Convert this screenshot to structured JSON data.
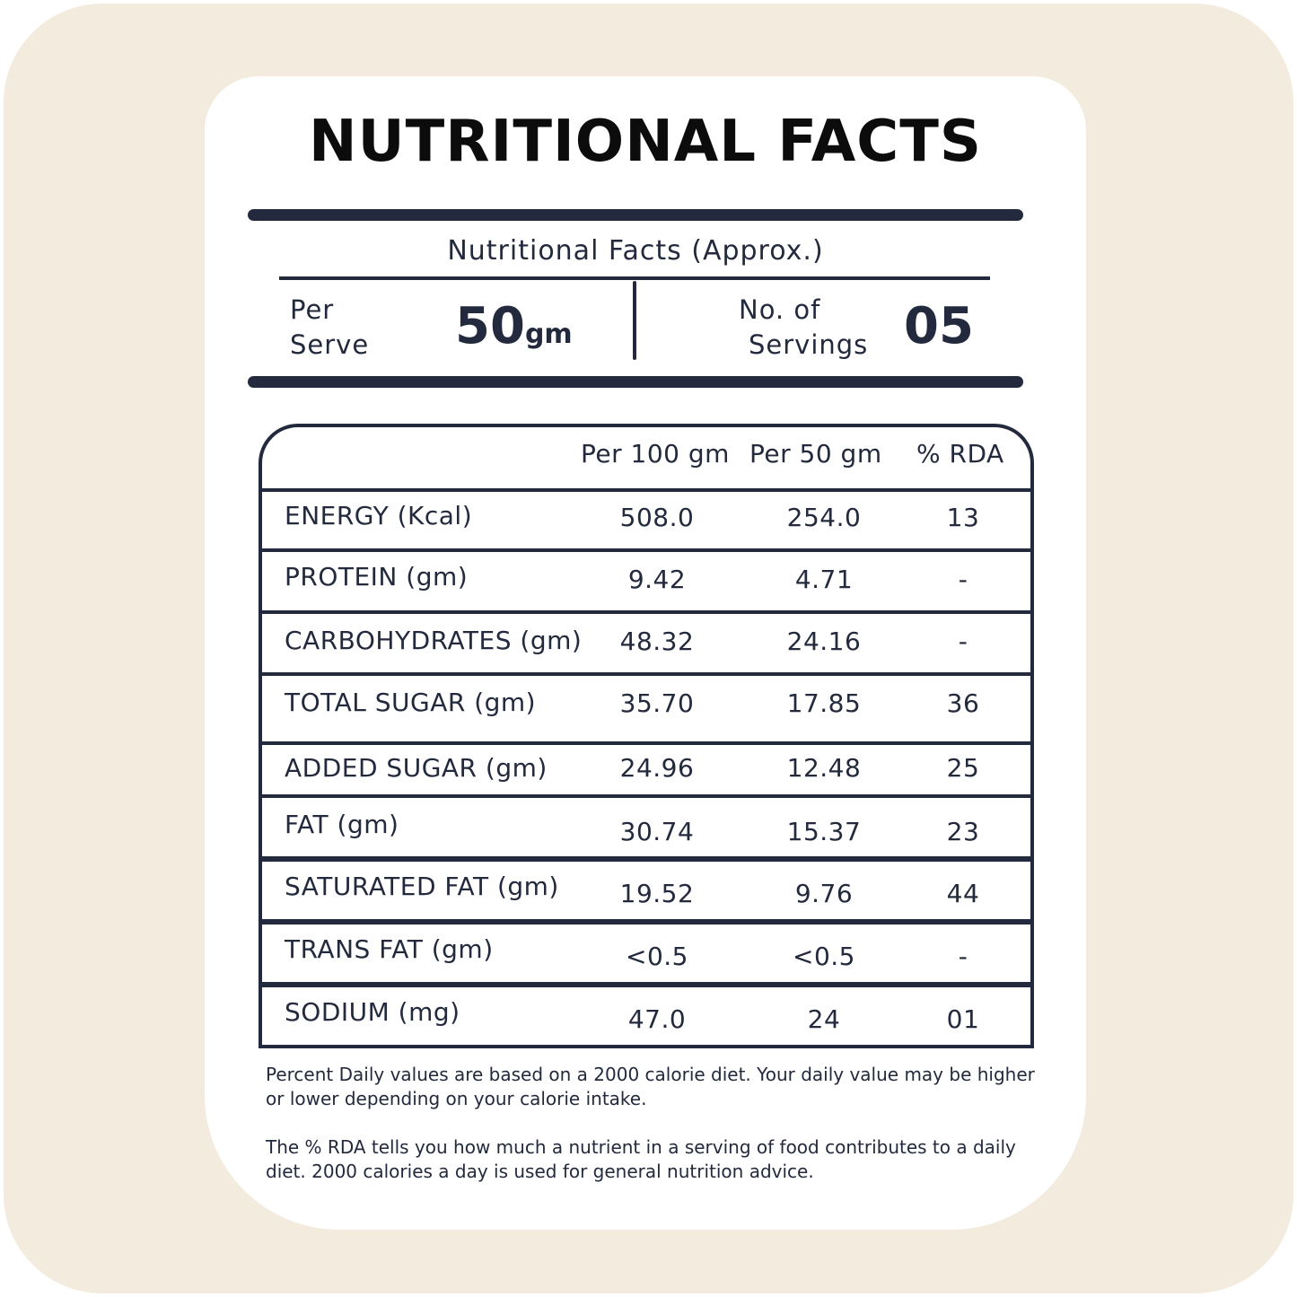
{
  "title": "NUTRITIONAL FACTS",
  "subtitle": "Nutritional Facts (Approx.)",
  "serve": {
    "label_line1": "Per",
    "label_line2": "Serve",
    "value": "50",
    "unit": "gm"
  },
  "servings": {
    "label_line1": "No. of",
    "label_line2": "Servings",
    "value": "05"
  },
  "table": {
    "headers": [
      "Per 100 gm",
      "Per 50 gm",
      "% RDA"
    ],
    "rows": [
      {
        "name": "ENERGY (Kcal)",
        "per100": "508.0",
        "per50": "254.0",
        "rda": "13"
      },
      {
        "name": "PROTEIN (gm)",
        "per100": "9.42",
        "per50": "4.71",
        "rda": "-"
      },
      {
        "name": "CARBOHYDRATES (gm)",
        "per100": "48.32",
        "per50": "24.16",
        "rda": "-"
      },
      {
        "name": "TOTAL SUGAR (gm)",
        "per100": "35.70",
        "per50": "17.85",
        "rda": "36"
      },
      {
        "name": "ADDED SUGAR (gm)",
        "per100": "24.96",
        "per50": "12.48",
        "rda": "25"
      },
      {
        "name": "FAT (gm)",
        "per100": "30.74",
        "per50": "15.37",
        "rda": "23"
      },
      {
        "name": "SATURATED FAT (gm)",
        "per100": "19.52",
        "per50": "9.76",
        "rda": "44"
      },
      {
        "name": "TRANS FAT (gm)",
        "per100": "<0.5",
        "per50": "<0.5",
        "rda": "-"
      },
      {
        "name": "SODIUM (mg)",
        "per100": "47.0",
        "per50": "24",
        "rda": "01"
      }
    ]
  },
  "notes": [
    "Percent Daily values are based on a 2000 calorie diet. Your daily value may be higher or lower depending on your calorie intake.",
    "The % RDA tells you how much a nutrient in a serving of food contributes to a daily diet. 2000 calories a day is used for general nutrition advice."
  ]
}
